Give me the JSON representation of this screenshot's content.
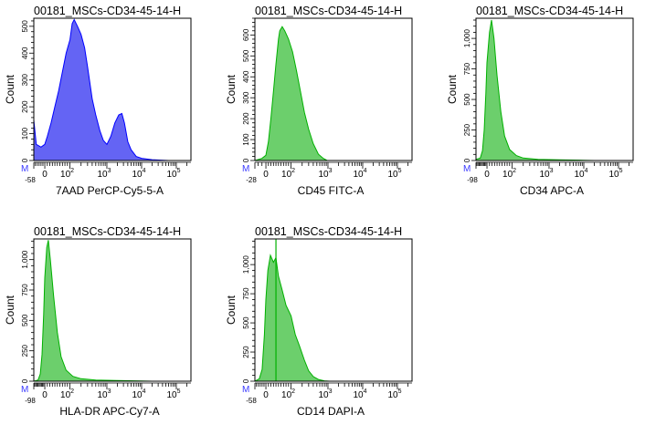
{
  "colors": {
    "blue_fill": "#6464f4",
    "blue_line": "#0000ff",
    "green_fill": "#6ccf6c",
    "green_line": "#00b000",
    "marker": "#3a3aff"
  },
  "chart_data": [
    {
      "type": "area",
      "title": "00181_MSCs-CD34-45-14-H",
      "xlabel": "7AAD PerCP-Cy5-5-A",
      "ylabel": "Count",
      "marker_label": "M",
      "color": "blue",
      "xmin_label": "-58",
      "xmin": -58,
      "xticks": [
        {
          "base": "0",
          "exp": ""
        },
        {
          "base": "10",
          "exp": "2"
        },
        {
          "base": "10",
          "exp": "3"
        },
        {
          "base": "10",
          "exp": "4"
        },
        {
          "base": "10",
          "exp": "5"
        }
      ],
      "yticks": [
        "0",
        "100",
        "200",
        "300",
        "400",
        "500"
      ],
      "ytick_step": 100,
      "ylim": [
        0,
        530
      ],
      "points": [
        [
          -58,
          150
        ],
        [
          -45,
          60
        ],
        [
          -20,
          50
        ],
        [
          0,
          60
        ],
        [
          10,
          90
        ],
        [
          25,
          140
        ],
        [
          40,
          200
        ],
        [
          55,
          260
        ],
        [
          70,
          330
        ],
        [
          85,
          400
        ],
        [
          100,
          450
        ],
        [
          115,
          510
        ],
        [
          130,
          525
        ],
        [
          160,
          500
        ],
        [
          200,
          470
        ],
        [
          250,
          420
        ],
        [
          300,
          350
        ],
        [
          400,
          230
        ],
        [
          500,
          170
        ],
        [
          650,
          110
        ],
        [
          800,
          75
        ],
        [
          1000,
          60
        ],
        [
          1300,
          90
        ],
        [
          1700,
          140
        ],
        [
          2200,
          170
        ],
        [
          2700,
          175
        ],
        [
          3200,
          140
        ],
        [
          4000,
          70
        ],
        [
          5000,
          40
        ],
        [
          7000,
          15
        ],
        [
          10000,
          8
        ],
        [
          20000,
          3
        ],
        [
          60000,
          0
        ]
      ]
    },
    {
      "type": "area",
      "title": "00181_MSCs-CD34-45-14-H",
      "xlabel": "CD45 FITC-A",
      "ylabel": "Count",
      "marker_label": "M",
      "color": "green",
      "xmin_label": "-28",
      "xmin": -28,
      "xticks": [
        {
          "base": "0",
          "exp": ""
        },
        {
          "base": "10",
          "exp": "2"
        },
        {
          "base": "10",
          "exp": "3"
        },
        {
          "base": "10",
          "exp": "4"
        },
        {
          "base": "10",
          "exp": "5"
        }
      ],
      "yticks": [
        "0",
        "100",
        "200",
        "300",
        "400",
        "500",
        "600"
      ],
      "ytick_step": 100,
      "ylim": [
        0,
        680
      ],
      "points": [
        [
          -28,
          0
        ],
        [
          -10,
          10
        ],
        [
          0,
          25
        ],
        [
          10,
          90
        ],
        [
          20,
          200
        ],
        [
          30,
          330
        ],
        [
          40,
          460
        ],
        [
          50,
          580
        ],
        [
          55,
          620
        ],
        [
          65,
          640
        ],
        [
          75,
          620
        ],
        [
          90,
          580
        ],
        [
          110,
          520
        ],
        [
          140,
          430
        ],
        [
          180,
          330
        ],
        [
          230,
          230
        ],
        [
          300,
          150
        ],
        [
          400,
          80
        ],
        [
          550,
          30
        ],
        [
          750,
          10
        ],
        [
          950,
          0
        ]
      ]
    },
    {
      "type": "area",
      "title": "00181_MSCs-CD34-45-14-H",
      "xlabel": "CD34 APC-A",
      "ylabel": "Count",
      "marker_label": "M",
      "color": "green",
      "xmin_label": "-98",
      "xmin": -98,
      "xticks": [
        {
          "base": "0",
          "exp": ""
        },
        {
          "base": "10",
          "exp": "2"
        },
        {
          "base": "10",
          "exp": "3"
        },
        {
          "base": "10",
          "exp": "4"
        },
        {
          "base": "10",
          "exp": "5"
        }
      ],
      "yticks": [
        "0",
        "250",
        "500",
        "750",
        "1,000"
      ],
      "ytick_step": 250,
      "ylim": [
        0,
        1165
      ],
      "points": [
        [
          -98,
          10
        ],
        [
          -60,
          20
        ],
        [
          -40,
          80
        ],
        [
          -25,
          250
        ],
        [
          -10,
          550
        ],
        [
          0,
          800
        ],
        [
          10,
          1050
        ],
        [
          18,
          1150
        ],
        [
          28,
          1000
        ],
        [
          40,
          700
        ],
        [
          55,
          400
        ],
        [
          70,
          200
        ],
        [
          90,
          90
        ],
        [
          130,
          40
        ],
        [
          200,
          20
        ],
        [
          500,
          10
        ],
        [
          2000,
          5
        ],
        [
          10000,
          2
        ],
        [
          20000,
          0
        ]
      ]
    },
    {
      "type": "area",
      "title": "00181_MSCs-CD34-45-14-H",
      "xlabel": "HLA-DR APC-Cy7-A",
      "ylabel": "Count",
      "marker_label": "M",
      "color": "green",
      "xmin_label": "-98",
      "xmin": -98,
      "xticks": [
        {
          "base": "0",
          "exp": ""
        },
        {
          "base": "10",
          "exp": "2"
        },
        {
          "base": "10",
          "exp": "3"
        },
        {
          "base": "10",
          "exp": "4"
        },
        {
          "base": "10",
          "exp": "5"
        }
      ],
      "yticks": [
        "0",
        "250",
        "500",
        "750",
        "1,000"
      ],
      "ytick_step": 250,
      "ylim": [
        0,
        1170
      ],
      "points": [
        [
          -98,
          0
        ],
        [
          -60,
          10
        ],
        [
          -40,
          60
        ],
        [
          -25,
          220
        ],
        [
          -10,
          550
        ],
        [
          0,
          850
        ],
        [
          8,
          1100
        ],
        [
          14,
          1160
        ],
        [
          22,
          1000
        ],
        [
          35,
          700
        ],
        [
          50,
          400
        ],
        [
          65,
          200
        ],
        [
          85,
          90
        ],
        [
          120,
          40
        ],
        [
          200,
          20
        ],
        [
          500,
          10
        ],
        [
          2000,
          5
        ],
        [
          10000,
          2
        ],
        [
          20000,
          0
        ]
      ]
    },
    {
      "type": "area",
      "title": "00181_MSCs-CD34-45-14-H",
      "xlabel": "CD14 DAPI-A",
      "ylabel": "Count",
      "marker_label": "M",
      "color": "green",
      "xmin_label": "-58",
      "xmin": -58,
      "xticks": [
        {
          "base": "0",
          "exp": ""
        },
        {
          "base": "10",
          "exp": "2"
        },
        {
          "base": "10",
          "exp": "3"
        },
        {
          "base": "10",
          "exp": "4"
        },
        {
          "base": "10",
          "exp": "5"
        }
      ],
      "yticks": [
        "0",
        "250",
        "500",
        "750",
        "1,000"
      ],
      "ytick_step": 250,
      "ylim": [
        0,
        1220
      ],
      "points": [
        [
          -58,
          0
        ],
        [
          -35,
          20
        ],
        [
          -20,
          100
        ],
        [
          -8,
          400
        ],
        [
          0,
          700
        ],
        [
          8,
          950
        ],
        [
          18,
          1080
        ],
        [
          30,
          1020
        ],
        [
          40,
          1060
        ],
        [
          50,
          900
        ],
        [
          65,
          780
        ],
        [
          80,
          650
        ],
        [
          100,
          560
        ],
        [
          130,
          400
        ],
        [
          170,
          300
        ],
        [
          230,
          180
        ],
        [
          300,
          90
        ],
        [
          400,
          40
        ],
        [
          550,
          15
        ],
        [
          800,
          3
        ],
        [
          1100,
          0
        ]
      ],
      "spike": [
        40,
        1220
      ]
    }
  ]
}
